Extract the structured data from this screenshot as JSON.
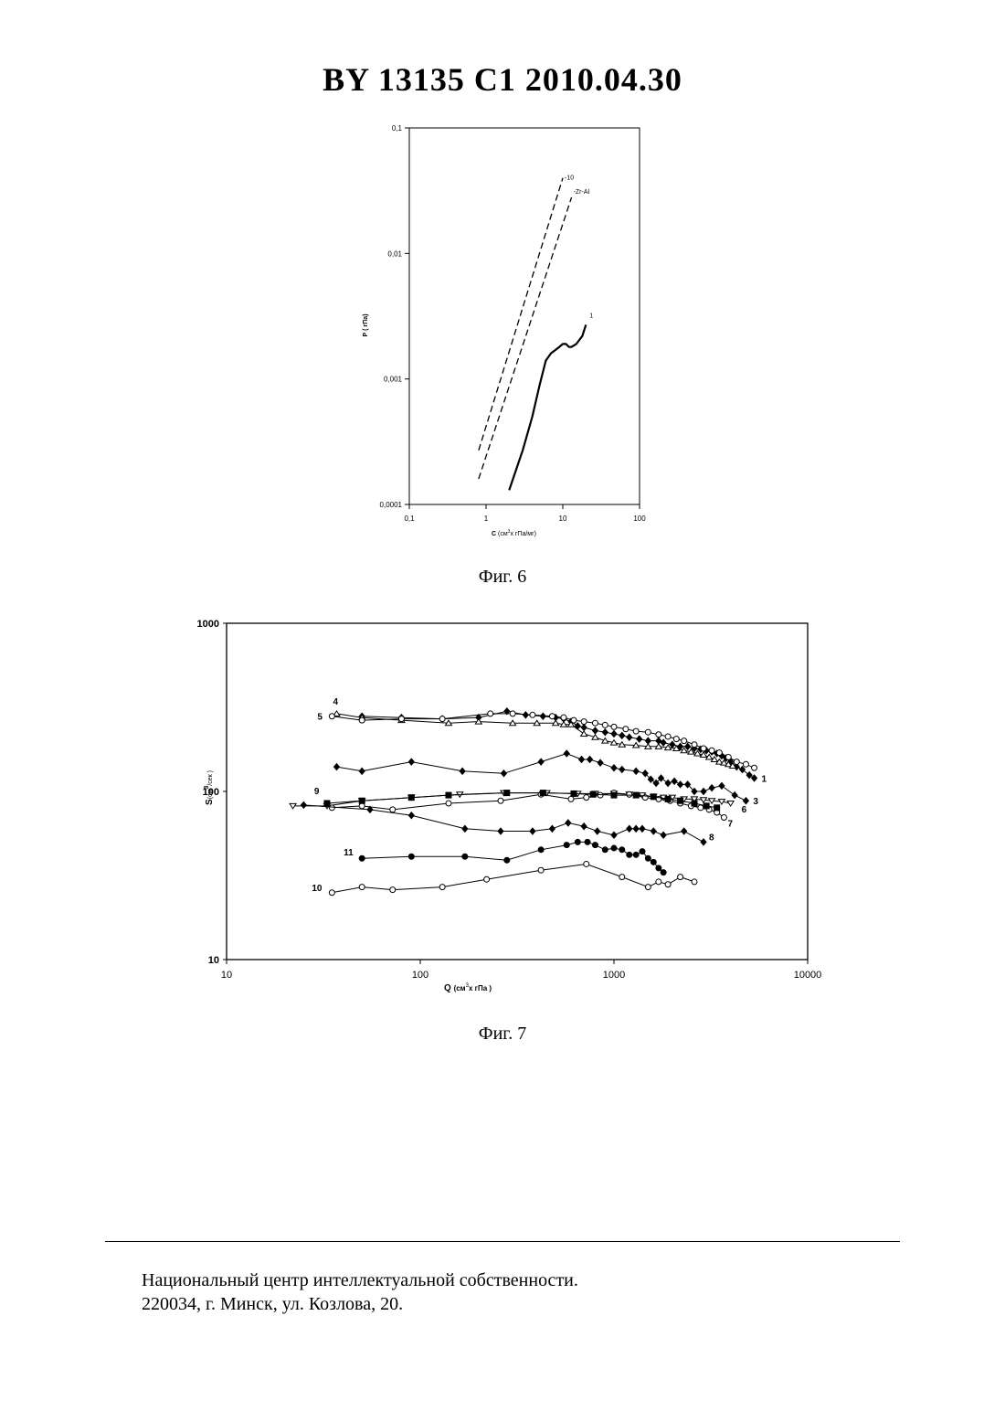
{
  "header": {
    "title": "BY  13135  C1  2010.04.30"
  },
  "figures": [
    {
      "caption": "Фиг. 6"
    },
    {
      "caption": "Фиг. 7"
    }
  ],
  "footer": {
    "line1": "Национальный центр интеллектуальной собственности.",
    "line2": "220034, г. Минск, ул. Козлова, 20."
  },
  "chart_data": [
    {
      "type": "line",
      "xscale": "log",
      "yscale": "log",
      "xlim": [
        0.1,
        100
      ],
      "ylim": [
        0.0001,
        0.1
      ],
      "xlabel_main": "C",
      "xlabel_unit_pre": "(см",
      "xlabel_unit_exp": "3",
      "xlabel_unit_post": "х гПа/мг)",
      "ylabel": "Р ( гПа)",
      "x_ticks": [
        "0,1",
        "1",
        "10",
        "100"
      ],
      "x_tick_values": [
        0.1,
        1,
        10,
        100
      ],
      "y_ticks": [
        "0,0001",
        "0,001",
        "0,01",
        "0,1"
      ],
      "y_tick_values": [
        0.0001,
        0.001,
        0.01,
        0.1
      ],
      "series": [
        {
          "name": "10",
          "style": "dashed",
          "x": [
            0.8,
            10
          ],
          "y": [
            0.00027,
            0.04
          ]
        },
        {
          "name": "Zr-Al",
          "style": "dashed",
          "x": [
            0.8,
            13
          ],
          "y": [
            0.00016,
            0.028
          ]
        },
        {
          "name": "1",
          "style": "solid",
          "x": [
            2,
            3,
            4,
            5,
            6,
            7,
            8,
            9,
            10,
            11,
            12,
            13,
            15,
            18,
            20
          ],
          "y": [
            0.00013,
            0.00027,
            0.0005,
            0.0009,
            0.0014,
            0.0016,
            0.0017,
            0.0018,
            0.0019,
            0.0019,
            0.0018,
            0.0018,
            0.0019,
            0.0022,
            0.0027
          ]
        }
      ]
    },
    {
      "type": "line",
      "xscale": "log",
      "yscale": "log",
      "xlim": [
        10,
        10000
      ],
      "ylim": [
        10,
        1000
      ],
      "xlabel_main": "Q",
      "xlabel_unit_pre": "(см",
      "xlabel_unit_exp": "3",
      "xlabel_unit_post": "х гПа )",
      "ylabel_main": "S",
      "ylabel_unit_pre": "(см",
      "ylabel_unit_exp": "3",
      "ylabel_unit_post": "/сек )",
      "x_ticks": [
        "10",
        "100",
        "1000",
        "10000"
      ],
      "x_tick_values": [
        10,
        100,
        1000,
        10000
      ],
      "y_ticks": [
        "10",
        "100",
        "1000"
      ],
      "y_tick_values": [
        10,
        100,
        1000
      ],
      "series": [
        {
          "name": "1",
          "marker": "diamond-filled",
          "x": [
            50,
            80,
            130,
            200,
            280,
            350,
            430,
            500,
            550,
            600,
            650,
            700,
            800,
            900,
            1000,
            1100,
            1200,
            1350,
            1500,
            1700,
            1800,
            2000,
            2200,
            2400,
            2600,
            2800,
            3000,
            3200,
            3400,
            3600,
            3800,
            4000,
            4300,
            4600,
            5000,
            5300
          ],
          "y": [
            280,
            275,
            270,
            275,
            300,
            285,
            280,
            275,
            270,
            260,
            245,
            240,
            230,
            225,
            220,
            215,
            210,
            205,
            200,
            200,
            195,
            190,
            185,
            185,
            180,
            178,
            175,
            172,
            168,
            163,
            158,
            150,
            140,
            135,
            125,
            120
          ]
        },
        {
          "name": "3",
          "marker": "diamond-filled",
          "x": [
            37,
            50,
            90,
            165,
            270,
            420,
            570,
            680,
            750,
            850,
            1000,
            1100,
            1300,
            1450,
            1550,
            1650,
            1750,
            1900,
            2050,
            2200,
            2400,
            2600,
            2900,
            3200,
            3600,
            4200,
            4800
          ],
          "y": [
            140,
            132,
            150,
            132,
            128,
            150,
            168,
            155,
            155,
            148,
            138,
            135,
            132,
            128,
            118,
            112,
            120,
            112,
            115,
            110,
            110,
            100,
            100,
            105,
            108,
            95,
            88
          ]
        },
        {
          "name": "4",
          "marker": "triangle-open",
          "x": [
            37,
            50,
            80,
            140,
            200,
            300,
            400,
            500,
            550,
            600,
            700,
            800,
            900,
            1000,
            1100,
            1300,
            1500,
            1700,
            1900,
            2100,
            2300,
            2500,
            2700,
            2900,
            3100,
            3300,
            3500,
            3700,
            3900,
            4100
          ],
          "y": [
            290,
            275,
            265,
            255,
            260,
            255,
            255,
            255,
            250,
            250,
            220,
            210,
            200,
            195,
            190,
            188,
            185,
            185,
            182,
            180,
            175,
            172,
            168,
            165,
            160,
            155,
            150,
            148,
            145,
            142
          ]
        },
        {
          "name": "5",
          "marker": "circle-open",
          "x": [
            35,
            50,
            80,
            130,
            230,
            300,
            380,
            480,
            550,
            620,
            700,
            800,
            900,
            1000,
            1150,
            1300,
            1500,
            1700,
            1900,
            2100,
            2300,
            2600,
            2900,
            3200,
            3500,
            3900,
            4300,
            4800,
            5300
          ],
          "y": [
            280,
            265,
            270,
            270,
            290,
            290,
            285,
            280,
            275,
            265,
            260,
            255,
            248,
            242,
            235,
            228,
            225,
            218,
            212,
            205,
            200,
            190,
            180,
            175,
            170,
            160,
            150,
            145,
            138
          ]
        },
        {
          "name": "6",
          "marker": "triangle-down-open",
          "x": [
            22,
            33,
            50,
            90,
            160,
            270,
            450,
            650,
            800,
            1000,
            1200,
            1400,
            1600,
            1800,
            2000,
            2300,
            2600,
            2900,
            3200,
            3600,
            4000
          ],
          "y": [
            82,
            82,
            88,
            92,
            96,
            98,
            98,
            97,
            97,
            97,
            96,
            95,
            93,
            92,
            92,
            90,
            90,
            89,
            88,
            87,
            85
          ]
        },
        {
          "name": "7",
          "marker": "circle-open",
          "x": [
            35,
            50,
            72,
            140,
            260,
            420,
            600,
            720,
            850,
            1000,
            1200,
            1450,
            1700,
            1950,
            2200,
            2500,
            2800,
            3100,
            3400,
            3700
          ],
          "y": [
            80,
            82,
            78,
            85,
            88,
            96,
            90,
            92,
            95,
            98,
            96,
            92,
            90,
            88,
            85,
            82,
            80,
            78,
            75,
            70
          ]
        },
        {
          "name": "8",
          "marker": "diamond-filled",
          "x": [
            25,
            55,
            90,
            170,
            260,
            380,
            480,
            580,
            700,
            820,
            1000,
            1200,
            1300,
            1400,
            1600,
            1800,
            2300,
            2900
          ],
          "y": [
            83,
            78,
            72,
            60,
            58,
            58,
            60,
            65,
            62,
            58,
            55,
            60,
            60,
            60,
            58,
            55,
            58,
            50
          ]
        },
        {
          "name": "9",
          "marker": "square-filled",
          "x": [
            33,
            50,
            90,
            140,
            280,
            430,
            620,
            780,
            1000,
            1300,
            1600,
            1900,
            2200,
            2600,
            3000,
            3400
          ],
          "y": [
            85,
            88,
            92,
            95,
            98,
            98,
            97,
            96,
            95,
            95,
            93,
            90,
            88,
            85,
            82,
            80
          ]
        },
        {
          "name": "11",
          "marker": "circle-filled",
          "x": [
            50,
            90,
            170,
            280,
            420,
            570,
            650,
            730,
            800,
            900,
            1000,
            1100,
            1200,
            1300,
            1400,
            1500,
            1600,
            1700,
            1800
          ],
          "y": [
            40,
            41,
            41,
            39,
            45,
            48,
            50,
            50,
            48,
            45,
            46,
            45,
            42,
            42,
            44,
            40,
            38,
            35,
            33
          ]
        },
        {
          "name": "10",
          "marker": "circle-open",
          "x": [
            35,
            50,
            72,
            130,
            220,
            420,
            720,
            1100,
            1500,
            1700,
            1900,
            2200,
            2600
          ],
          "y": [
            25,
            27,
            26,
            27,
            30,
            34,
            37,
            31,
            27,
            29,
            28,
            31,
            29
          ]
        }
      ]
    }
  ]
}
